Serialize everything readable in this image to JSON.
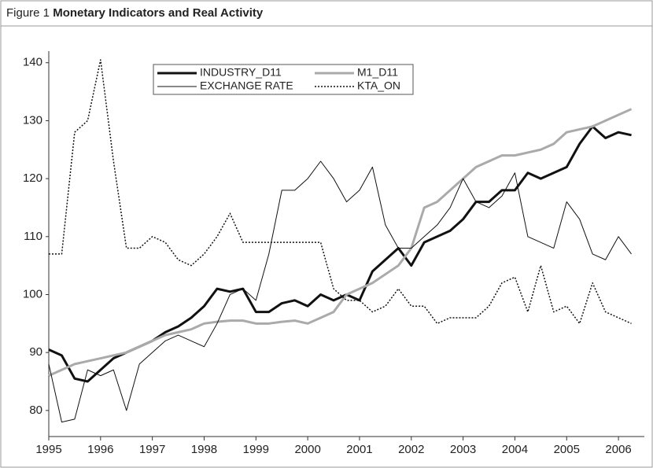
{
  "chart_data": {
    "type": "line",
    "label": "Figure 1",
    "title": "Monetary Indicators and Real Activity",
    "x": [
      1995,
      1995.25,
      1995.5,
      1995.75,
      1996,
      1996.25,
      1996.5,
      1996.75,
      1997,
      1997.25,
      1997.5,
      1997.75,
      1998,
      1998.25,
      1998.5,
      1998.75,
      1999,
      1999.25,
      1999.5,
      1999.75,
      2000,
      2000.25,
      2000.5,
      2000.75,
      2001,
      2001.25,
      2001.5,
      2001.75,
      2002,
      2002.25,
      2002.5,
      2002.75,
      2003,
      2003.25,
      2003.5,
      2003.75,
      2004,
      2004.25,
      2004.5,
      2004.75,
      2005,
      2005.25,
      2005.5,
      2005.75,
      2006,
      2006.25
    ],
    "series": [
      {
        "name": "INDUSTRY_D11",
        "color": "#111111",
        "line_width": 3,
        "style": "solid",
        "values": [
          90.5,
          89.5,
          85.5,
          85,
          87,
          89,
          90,
          91,
          92,
          93.5,
          94.5,
          96,
          98,
          101,
          100.5,
          101,
          97,
          97,
          98.5,
          99,
          98,
          100,
          99,
          100,
          99,
          104,
          106,
          108,
          105,
          109,
          110,
          111,
          113,
          116,
          116,
          118,
          118,
          121,
          120,
          121,
          122,
          126,
          129,
          127,
          128,
          127.5
        ]
      },
      {
        "name": "M1_D11",
        "color": "#aaaaaa",
        "line_width": 3,
        "style": "solid",
        "values": [
          86,
          87,
          88,
          88.5,
          89,
          89.5,
          90,
          91,
          92,
          93,
          93.5,
          94,
          95,
          95.3,
          95.5,
          95.5,
          95,
          95,
          95.3,
          95.5,
          95,
          96,
          97,
          100,
          101,
          102,
          103.5,
          105,
          108,
          115,
          116,
          118,
          120,
          122,
          123,
          124,
          124,
          124.5,
          125,
          126,
          128,
          128.5,
          129,
          130,
          131,
          132
        ]
      },
      {
        "name": "EXCHANGE RATE",
        "color": "#111111",
        "line_width": 1,
        "style": "solid",
        "values": [
          88,
          78,
          78.5,
          87,
          86,
          87,
          80,
          88,
          90,
          92,
          93,
          92,
          91,
          95,
          100,
          101,
          99,
          107,
          118,
          118,
          120,
          123,
          120,
          116,
          118,
          122,
          112,
          108,
          108,
          110,
          112,
          115,
          120,
          116,
          115,
          117,
          121,
          110,
          109,
          108,
          116,
          113,
          107,
          106,
          110,
          107
        ]
      },
      {
        "name": "KTA_ON",
        "color": "#111111",
        "line_width": 1.5,
        "style": "dotted",
        "values": [
          107,
          107,
          128,
          130,
          140.5,
          123,
          108,
          108,
          110,
          109,
          106,
          105,
          107,
          110,
          114,
          109,
          109,
          109,
          109,
          109,
          109,
          109,
          101,
          99,
          99,
          97,
          98,
          101,
          98,
          98,
          95,
          96,
          96,
          96,
          98,
          102,
          103,
          97,
          105,
          97,
          98,
          95,
          102,
          97,
          96,
          95
        ]
      }
    ],
    "xlim": [
      1995,
      2006.5
    ],
    "xticks": [
      1995,
      1996,
      1997,
      1998,
      1999,
      2000,
      2001,
      2002,
      2003,
      2004,
      2005,
      2006
    ],
    "ylim": [
      75.5,
      142
    ],
    "yticks": [
      80,
      90,
      100,
      110,
      120,
      130,
      140
    ],
    "grid": false
  }
}
